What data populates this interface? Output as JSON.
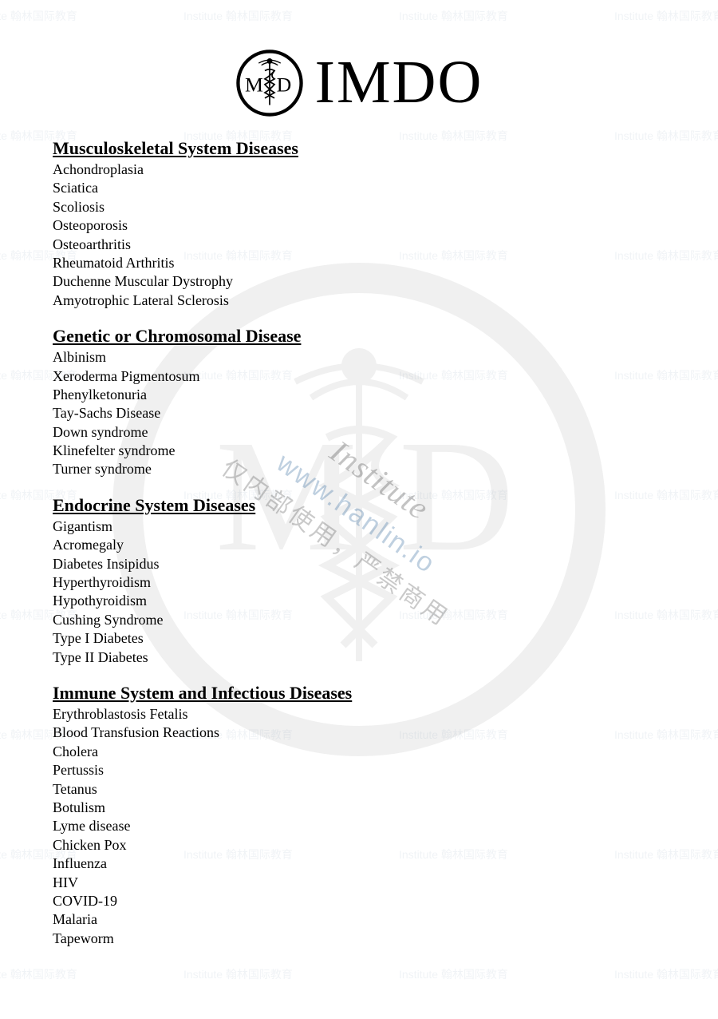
{
  "header": {
    "title": "IMDO",
    "logo_letters": {
      "left": "M",
      "right": "D"
    }
  },
  "watermark": {
    "url": "www.hanlin.io",
    "institute": "Institute",
    "cn_text": "仅内部使用，严禁商用",
    "tile_text": "Institute 翰林国际教育",
    "colors": {
      "url": "#4a7aa8",
      "institute": "#555555",
      "cn": "#666666",
      "tile": "#1a4d7a",
      "bg_logo": "#888888"
    }
  },
  "sections": [
    {
      "title": "Musculoskeletal System Diseases",
      "items": [
        "Achondroplasia",
        "Sciatica",
        "Scoliosis",
        "Osteoporosis",
        "Osteoarthritis",
        "Rheumatoid Arthritis",
        "Duchenne Muscular Dystrophy",
        "Amyotrophic Lateral Sclerosis"
      ]
    },
    {
      "title": "Genetic or Chromosomal Disease",
      "items": [
        "Albinism",
        "Xeroderma Pigmentosum",
        "Phenylketonuria",
        "Tay-Sachs Disease",
        "Down syndrome",
        "Klinefelter syndrome",
        "Turner syndrome"
      ]
    },
    {
      "title": "Endocrine System Diseases",
      "items": [
        "Gigantism",
        "Acromegaly",
        "Diabetes Insipidus",
        "Hyperthyroidism",
        "Hypothyroidism",
        "Cushing Syndrome",
        "Type I Diabetes",
        "Type II Diabetes"
      ]
    },
    {
      "title": "Immune System and Infectious Diseases",
      "items": [
        "Erythroblastosis Fetalis",
        "Blood Transfusion Reactions",
        "Cholera",
        "Pertussis",
        "Tetanus",
        "Botulism",
        "Lyme disease",
        "Chicken Pox",
        "Influenza",
        "HIV",
        "COVID-19",
        "Malaria",
        "Tapeworm"
      ]
    }
  ],
  "styling": {
    "page_bg": "#ffffff",
    "text_color": "#000000",
    "title_fontsize": 22,
    "item_fontsize": 18,
    "header_fontsize": 76,
    "font_family": "Times New Roman"
  }
}
